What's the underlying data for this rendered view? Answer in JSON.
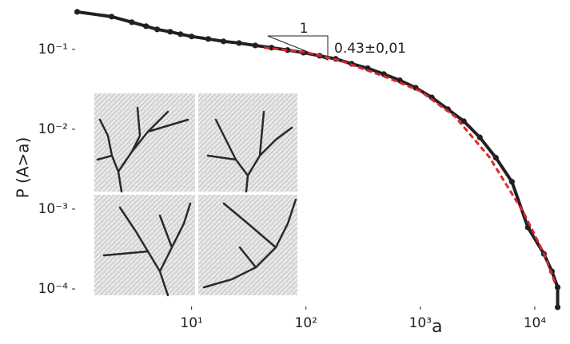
{
  "chart_data": {
    "type": "scatter",
    "xlog": true,
    "ylog": true,
    "xlabel": "a",
    "ylabel": "P (A>a)",
    "annotation": {
      "run": "1",
      "rise": "0.43±0,01"
    },
    "xlim": [
      0.9,
      20000
    ],
    "ylim": [
      5.5e-05,
      0.37
    ],
    "xticks": [
      {
        "value": 10,
        "label": "10¹"
      },
      {
        "value": 100,
        "label": "10²"
      },
      {
        "value": 1000,
        "label": "10³"
      },
      {
        "value": 10000,
        "label": "10⁴"
      }
    ],
    "yticks": [
      {
        "value": 0.1,
        "label": "10⁻¹"
      },
      {
        "value": 0.01,
        "label": "10⁻²"
      },
      {
        "value": 0.001,
        "label": "10⁻³"
      },
      {
        "value": 0.0001,
        "label": "10⁻⁴"
      }
    ],
    "series": [
      {
        "color": "#231f20",
        "style": "points",
        "x": [
          1,
          2,
          3,
          4,
          5,
          6.5,
          8,
          10,
          14,
          19,
          26,
          36,
          50,
          69,
          95,
          132,
          182,
          251,
          347,
          479,
          661,
          912,
          1259,
          1738,
          2399,
          3311,
          4571,
          6310,
          8710,
          12020,
          14130,
          15850,
          15850
        ],
        "values": [
          0.295,
          0.257,
          0.219,
          0.195,
          0.178,
          0.166,
          0.155,
          0.145,
          0.135,
          0.126,
          0.12,
          0.112,
          0.105,
          0.098,
          0.091,
          0.083,
          0.076,
          0.066,
          0.058,
          0.049,
          0.041,
          0.033,
          0.025,
          0.0178,
          0.0126,
          0.0079,
          0.0044,
          0.0022,
          0.00059,
          0.000275,
          0.000166,
          0.000105,
          5.9e-05
        ]
      },
      {
        "color": "#e0262a",
        "style": "dashed",
        "x": [
          43,
          100,
          200,
          500,
          1000,
          2000,
          4000,
          8000,
          12000,
          15000
        ],
        "values": [
          0.105,
          0.092,
          0.072,
          0.045,
          0.03,
          0.0145,
          0.0045,
          0.0009,
          0.00028,
          0.00012
        ]
      }
    ]
  }
}
